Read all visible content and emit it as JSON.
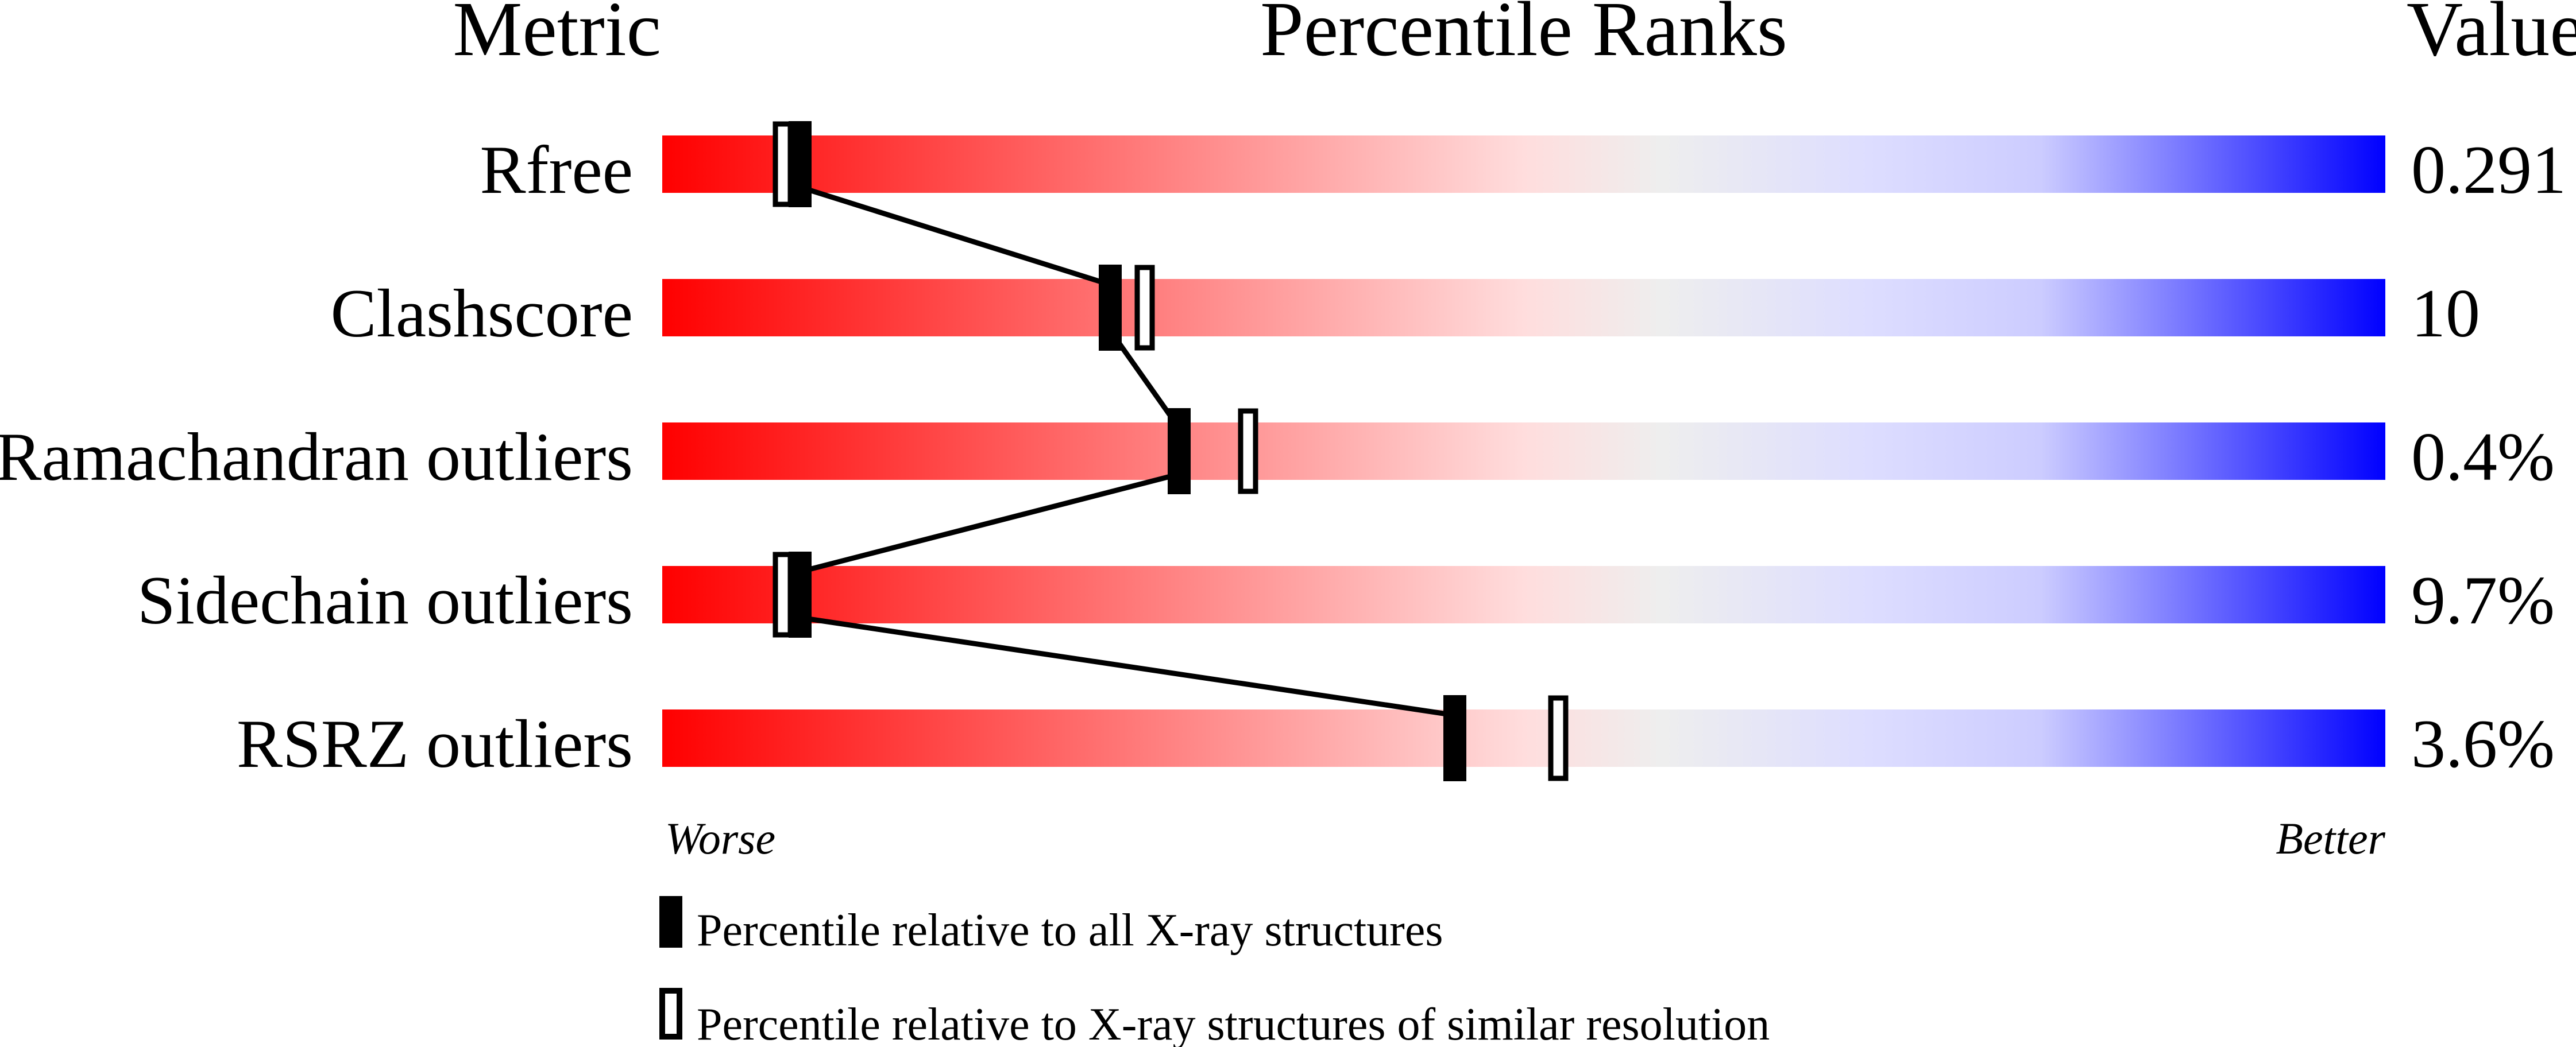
{
  "chart_data": {
    "type": "percentile-bar",
    "headers": {
      "metric": "Metric",
      "ranks": "Percentile Ranks",
      "value": "Value"
    },
    "xlim": [
      0,
      100
    ],
    "axis_labels": {
      "left": "Worse",
      "right": "Better"
    },
    "gradient_colors": [
      "#ff0000",
      "#ffdddd",
      "#eeeeee",
      "#ddddff",
      "#0000ff"
    ],
    "rows": [
      {
        "metric": "Rfree",
        "value": "0.291",
        "percentile_all": 8,
        "percentile_similar": 7
      },
      {
        "metric": "Clashscore",
        "value": "10",
        "percentile_all": 26,
        "percentile_similar": 28
      },
      {
        "metric": "Ramachandran outliers",
        "value": "0.4%",
        "percentile_all": 30,
        "percentile_similar": 34
      },
      {
        "metric": "Sidechain outliers",
        "value": "9.7%",
        "percentile_all": 8,
        "percentile_similar": 7
      },
      {
        "metric": "RSRZ outliers",
        "value": "3.6%",
        "percentile_all": 46,
        "percentile_similar": 52
      }
    ],
    "legend": [
      {
        "marker": "filled",
        "label": "Percentile relative to all X-ray structures"
      },
      {
        "marker": "hollow",
        "label": "Percentile relative to X-ray structures of similar resolution"
      }
    ]
  }
}
